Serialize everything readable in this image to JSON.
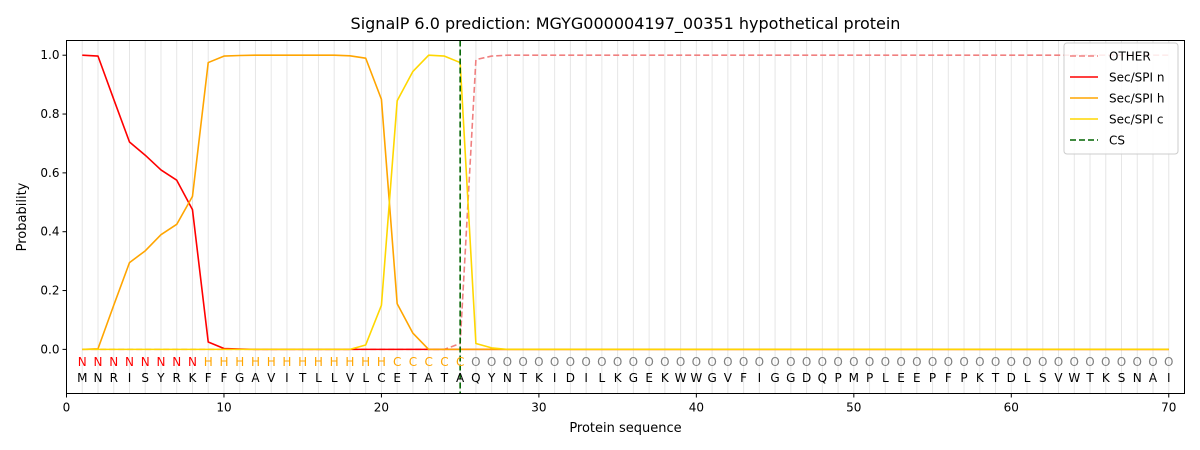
{
  "chart_data": {
    "type": "line",
    "title": "SignalP 6.0 prediction: MGYG000004197_00351 hypothetical protein",
    "xlabel": "Protein sequence",
    "ylabel": "Probability",
    "xlim": [
      0,
      71
    ],
    "ylim": [
      -0.15,
      1.05
    ],
    "xticks": [
      0,
      10,
      20,
      30,
      40,
      50,
      60,
      70
    ],
    "yticks": [
      0.0,
      0.2,
      0.4,
      0.6,
      0.8,
      1.0
    ],
    "xtick_labels": [
      "0",
      "10",
      "20",
      "30",
      "40",
      "50",
      "60",
      "70"
    ],
    "ytick_labels": [
      "0.0",
      "0.2",
      "0.4",
      "0.6",
      "0.8",
      "1.0"
    ],
    "grid": "vertical lines at each residue",
    "legend_position": "top-right",
    "x": [
      1,
      2,
      3,
      4,
      5,
      6,
      7,
      8,
      9,
      10,
      11,
      12,
      13,
      14,
      15,
      16,
      17,
      18,
      19,
      20,
      21,
      22,
      23,
      24,
      25,
      26,
      27,
      28,
      29,
      30,
      31,
      32,
      33,
      34,
      35,
      36,
      37,
      38,
      39,
      40,
      41,
      42,
      43,
      44,
      45,
      46,
      47,
      48,
      49,
      50,
      51,
      52,
      53,
      54,
      55,
      56,
      57,
      58,
      59,
      60,
      61,
      62,
      63,
      64,
      65,
      66,
      67,
      68,
      69,
      70
    ],
    "series": [
      {
        "name": "OTHER",
        "color": "#f08080",
        "dash": "dashed",
        "values": [
          0,
          0,
          0,
          0,
          0,
          0,
          0,
          0,
          0,
          0,
          0,
          0,
          0,
          0,
          0,
          0,
          0,
          0,
          0,
          0,
          0,
          0,
          0,
          0,
          0.02,
          0.985,
          0.997,
          1,
          1,
          1,
          1,
          1,
          1,
          1,
          1,
          1,
          1,
          1,
          1,
          1,
          1,
          1,
          1,
          1,
          1,
          1,
          1,
          1,
          1,
          1,
          1,
          1,
          1,
          1,
          1,
          1,
          1,
          1,
          1,
          1,
          1,
          1,
          1,
          1,
          1,
          1,
          1,
          1,
          1,
          1
        ]
      },
      {
        "name": "Sec/SPI n",
        "color": "#ff0000",
        "dash": "solid",
        "values": [
          1.0,
          0.997,
          0.85,
          0.705,
          0.66,
          0.61,
          0.575,
          0.475,
          0.025,
          0.003,
          0.001,
          0,
          0,
          0,
          0,
          0,
          0,
          0,
          0,
          0,
          0,
          0,
          0,
          0,
          0,
          0,
          0,
          0,
          0,
          0,
          0,
          0,
          0,
          0,
          0,
          0,
          0,
          0,
          0,
          0,
          0,
          0,
          0,
          0,
          0,
          0,
          0,
          0,
          0,
          0,
          0,
          0,
          0,
          0,
          0,
          0,
          0,
          0,
          0,
          0,
          0,
          0,
          0,
          0,
          0,
          0,
          0,
          0,
          0,
          0
        ]
      },
      {
        "name": "Sec/SPI h",
        "color": "#ffa500",
        "dash": "solid",
        "values": [
          0,
          0.002,
          0.15,
          0.295,
          0.335,
          0.39,
          0.425,
          0.52,
          0.975,
          0.997,
          0.999,
          1,
          1,
          1,
          1,
          1,
          1,
          0.998,
          0.99,
          0.85,
          0.155,
          0.055,
          0,
          0,
          0,
          0,
          0,
          0,
          0,
          0,
          0,
          0,
          0,
          0,
          0,
          0,
          0,
          0,
          0,
          0,
          0,
          0,
          0,
          0,
          0,
          0,
          0,
          0,
          0,
          0,
          0,
          0,
          0,
          0,
          0,
          0,
          0,
          0,
          0,
          0,
          0,
          0,
          0,
          0,
          0,
          0,
          0,
          0,
          0,
          0
        ]
      },
      {
        "name": "Sec/SPI c",
        "color": "#ffd700",
        "dash": "solid",
        "values": [
          0,
          0,
          0,
          0,
          0,
          0,
          0,
          0,
          0,
          0,
          0,
          0,
          0,
          0,
          0,
          0,
          0,
          0,
          0.015,
          0.15,
          0.845,
          0.945,
          1.0,
          0.997,
          0.975,
          0.02,
          0.005,
          0,
          0,
          0,
          0,
          0,
          0,
          0,
          0,
          0,
          0,
          0,
          0,
          0,
          0,
          0,
          0,
          0,
          0,
          0,
          0,
          0,
          0,
          0,
          0,
          0,
          0,
          0,
          0,
          0,
          0,
          0,
          0,
          0,
          0,
          0,
          0,
          0,
          0,
          0,
          0,
          0,
          0,
          0
        ]
      }
    ],
    "cs": {
      "name": "CS",
      "x": 25,
      "color": "#006400"
    },
    "sequence": [
      "M",
      "N",
      "R",
      "I",
      "S",
      "Y",
      "R",
      "K",
      "F",
      "F",
      "G",
      "A",
      "V",
      "I",
      "T",
      "L",
      "L",
      "V",
      "L",
      "C",
      "E",
      "T",
      "A",
      "T",
      "A",
      "Q",
      "Y",
      "N",
      "T",
      "K",
      "I",
      "D",
      "I",
      "L",
      "K",
      "G",
      "E",
      "K",
      "W",
      "W",
      "G",
      "V",
      "F",
      "I",
      "G",
      "G",
      "D",
      "Q",
      "P",
      "M",
      "P",
      "L",
      "E",
      "E",
      "P",
      "F",
      "P",
      "K",
      "T",
      "D",
      "L",
      "S",
      "V",
      "W",
      "T",
      "K",
      "S",
      "N",
      "A",
      "I"
    ],
    "labels": [
      "N",
      "N",
      "N",
      "N",
      "N",
      "N",
      "N",
      "N",
      "H",
      "H",
      "H",
      "H",
      "H",
      "H",
      "H",
      "H",
      "H",
      "H",
      "H",
      "H",
      "C",
      "C",
      "C",
      "C",
      "C",
      "O",
      "O",
      "O",
      "O",
      "O",
      "O",
      "O",
      "O",
      "O",
      "O",
      "O",
      "O",
      "O",
      "O",
      "O",
      "O",
      "O",
      "O",
      "O",
      "O",
      "O",
      "O",
      "O",
      "O",
      "O",
      "O",
      "O",
      "O",
      "O",
      "O",
      "O",
      "O",
      "O",
      "O",
      "O",
      "O",
      "O",
      "O",
      "O",
      "O",
      "O",
      "O",
      "O",
      "O",
      "O"
    ],
    "label_colors": {
      "N": "#ff0000",
      "H": "#ffa500",
      "C": "#ffa500",
      "O": "#808080"
    }
  }
}
